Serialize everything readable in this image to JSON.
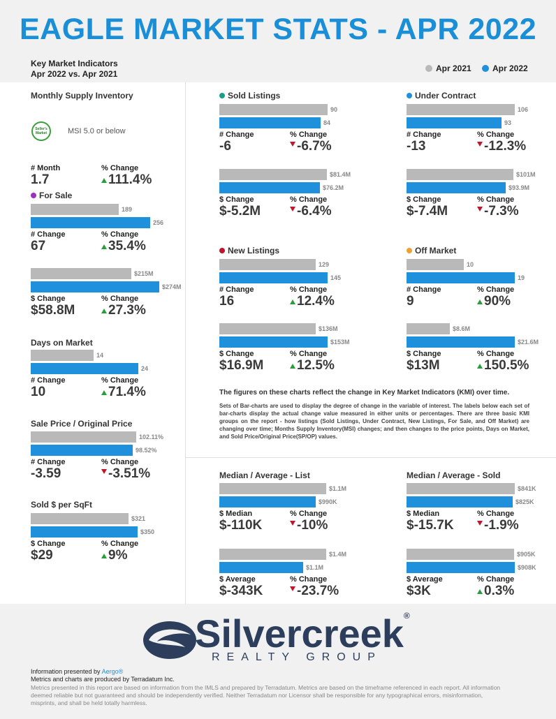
{
  "header": {
    "title": "EAGLE MARKET STATS - APR 2022",
    "kmi_title": "Key Market Indicators",
    "kmi_subtitle": "Apr 2022 vs. Apr 2021",
    "legend": [
      {
        "label": "Apr 2021",
        "color": "#b9b9b9"
      },
      {
        "label": "Apr 2022",
        "color": "#1f90db"
      }
    ]
  },
  "colors": {
    "gray": "#b9b9b9",
    "blue": "#1f90db",
    "up": "#2a9d3a",
    "down": "#c0152a",
    "title": "#1a8fd8"
  },
  "left": {
    "msi": {
      "title": "Monthly Supply Inventory",
      "badge": "Seller's Market",
      "badge_text": "MSI 5.0 or below",
      "change_label": "# Month",
      "change_value": "1.7",
      "pct_label": "% Change",
      "pct_value": "111.4%",
      "pct_dir": "up"
    },
    "for_sale": {
      "title": "For Sale",
      "dot_color": "#9b2fbf",
      "count": {
        "old": 189,
        "new": 256,
        "old_label": "189",
        "new_label": "256",
        "change_label": "# Change",
        "change_value": "67",
        "pct_label": "% Change",
        "pct_value": "35.4%",
        "pct_dir": "up"
      },
      "volume": {
        "old": 215,
        "new": 274,
        "old_label": "$215M",
        "new_label": "$274M",
        "change_label": "$ Change",
        "change_value": "$58.8M",
        "pct_label": "% Change",
        "pct_value": "27.3%",
        "pct_dir": "up"
      }
    },
    "days_on_market": {
      "title": "Days on Market",
      "old": 14,
      "new": 24,
      "old_label": "14",
      "new_label": "24",
      "change_label": "# Change",
      "change_value": "10",
      "pct_label": "% Change",
      "pct_value": "71.4%",
      "pct_dir": "up"
    },
    "sale_price": {
      "title": "Sale Price / Original Price",
      "old": 102.11,
      "new": 98.52,
      "old_label": "102.11%",
      "new_label": "98.52%",
      "change_label": "# Change",
      "change_value": "-3.59",
      "pct_label": "% Change",
      "pct_value": "-3.51%",
      "pct_dir": "down"
    },
    "sqft": {
      "title": "Sold $ per SqFt",
      "old": 321,
      "new": 350,
      "old_label": "$321",
      "new_label": "$350",
      "change_label": "$ Change",
      "change_value": "$29",
      "pct_label": "% Change",
      "pct_value": "9%",
      "pct_dir": "up"
    }
  },
  "groups": {
    "sold": {
      "title": "Sold Listings",
      "dot_color": "#1a9e8a",
      "count": {
        "old": 90,
        "new": 84,
        "old_label": "90",
        "new_label": "84",
        "change_label": "# Change",
        "change_value": "-6",
        "pct_label": "% Change",
        "pct_value": "-6.7%",
        "pct_dir": "down"
      },
      "volume": {
        "old": 81.4,
        "new": 76.2,
        "old_label": "$81.4M",
        "new_label": "$76.2M",
        "change_label": "$ Change",
        "change_value": "$-5.2M",
        "pct_label": "% Change",
        "pct_value": "-6.4%",
        "pct_dir": "down"
      }
    },
    "under_contract": {
      "title": "Under Contract",
      "dot_color": "#1f90db",
      "count": {
        "old": 106,
        "new": 93,
        "old_label": "106",
        "new_label": "93",
        "change_label": "# Change",
        "change_value": "-13",
        "pct_label": "% Change",
        "pct_value": "-12.3%",
        "pct_dir": "down"
      },
      "volume": {
        "old": 101,
        "new": 93.9,
        "old_label": "$101M",
        "new_label": "$93.9M",
        "change_label": "$ Change",
        "change_value": "$-7.4M",
        "pct_label": "% Change",
        "pct_value": "-7.3%",
        "pct_dir": "down"
      }
    },
    "new_listings": {
      "title": "New Listings",
      "dot_color": "#c0152a",
      "count": {
        "old": 129,
        "new": 145,
        "old_label": "129",
        "new_label": "145",
        "change_label": "# Change",
        "change_value": "16",
        "pct_label": "% Change",
        "pct_value": "12.4%",
        "pct_dir": "up"
      },
      "volume": {
        "old": 136,
        "new": 153,
        "old_label": "$136M",
        "new_label": "$153M",
        "change_label": "$ Change",
        "change_value": "$16.9M",
        "pct_label": "% Change",
        "pct_value": "12.5%",
        "pct_dir": "up"
      }
    },
    "off_market": {
      "title": "Off Market",
      "dot_color": "#f0a030",
      "count": {
        "old": 10,
        "new": 19,
        "old_label": "10",
        "new_label": "19",
        "change_label": "# Change",
        "change_value": "9",
        "pct_label": "% Change",
        "pct_value": "90%",
        "pct_dir": "up"
      },
      "volume": {
        "old": 8.6,
        "new": 21.6,
        "old_label": "$8.6M",
        "new_label": "$21.6M",
        "change_label": "$ Change",
        "change_value": "$13M",
        "pct_label": "% Change",
        "pct_value": "150.5%",
        "pct_dir": "up"
      }
    }
  },
  "notes": {
    "heading": "The figures on these charts reflect the change in Key Market Indicators (KMI) over time.",
    "body": "Sets of Bar-charts are used to display the degree of change in the variable of interest. The labels below each set of bar-charts display the actual change value measured in either units or percentages. There are three basic KMI groups on the report - how listings (Sold Listings, Under Contract, New Listings, For Sale, and Off Market) are changing over time; Months Supply Inventory(MSI) changes; and then changes to the price points, Days on Market, and Sold Price/Original Price(SP/OP) values."
  },
  "medians": {
    "list": {
      "title": "Median / Average - List",
      "median": {
        "old": 1.1,
        "new": 0.99,
        "old_label": "$1.1M",
        "new_label": "$990K",
        "change_label": "$ Median",
        "change_value": "$-110K",
        "pct_label": "% Change",
        "pct_value": "-10%",
        "pct_dir": "down"
      },
      "average": {
        "old": 1.4,
        "new": 1.1,
        "old_label": "$1.4M",
        "new_label": "$1.1M",
        "change_label": "$ Average",
        "change_value": "$-343K",
        "pct_label": "% Change",
        "pct_value": "-23.7%",
        "pct_dir": "down"
      }
    },
    "sold": {
      "title": "Median / Average - Sold",
      "median": {
        "old": 841,
        "new": 825,
        "old_label": "$841K",
        "new_label": "$825K",
        "change_label": "$ Median",
        "change_value": "$-15.7K",
        "pct_label": "% Change",
        "pct_value": "-1.9%",
        "pct_dir": "down"
      },
      "average": {
        "old": 905,
        "new": 908,
        "old_label": "$905K",
        "new_label": "$908K",
        "change_label": "$ Average",
        "change_value": "$3K",
        "pct_label": "% Change",
        "pct_value": "0.3%",
        "pct_dir": "up"
      }
    }
  },
  "footer": {
    "logo_name": "Silvercreek",
    "logo_reg": "®",
    "logo_sub": "REALTY GROUP",
    "presented_prefix": "Information presented by",
    "presented_by": "Aergo®",
    "produced": "Metrics and charts are produced by Terradatum Inc.",
    "disclaimer": "Metrics presented in this report are based on information from the IMLS and prepared by Terradatum. Metrics are based on the timeframe referenced in each report. All information deemed reliable but not guaranteed and should be independently verified. Neither Terradatum nor Licensor shall be responsible for any typographical errors, misinformation, misprints, and shall be held totally harmless."
  }
}
